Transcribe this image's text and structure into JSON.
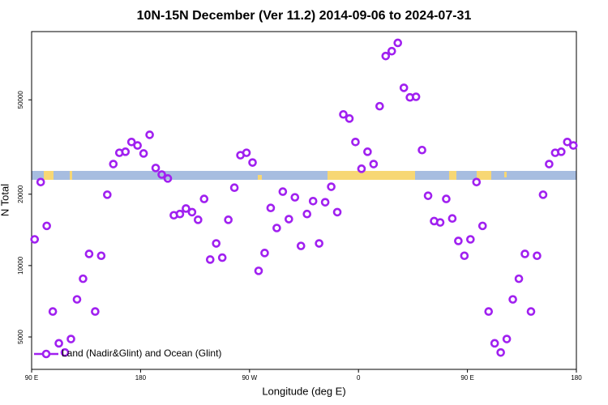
{
  "chart_data": {
    "type": "scatter",
    "title": "10N-15N December (Ver 11.2)   2014-09-06 to 2024-07-31",
    "x_label": "Longitude (deg E)",
    "y_label": "N Total",
    "xlim": [
      90,
      540
    ],
    "xticks": [
      {
        "value": 90,
        "label": "90 E"
      },
      {
        "value": 180,
        "label": "180"
      },
      {
        "value": 270,
        "label": "90 W"
      },
      {
        "value": 360,
        "label": "0"
      },
      {
        "value": 450,
        "label": "90 E"
      },
      {
        "value": 540,
        "label": "180"
      }
    ],
    "ylim": [
      3650,
      97000
    ],
    "yticks": [
      5000,
      10000,
      20000,
      50000
    ],
    "y_log": true,
    "legend_position": "bottom-left",
    "series": [
      {
        "name": "Land (Nadir&Glint) and Ocean (Glint)",
        "color": "#a020f0",
        "x": [
          92.5,
          97.5,
          102.5,
          107.5,
          112.5,
          117.5,
          122.5,
          127.5,
          132.5,
          137.5,
          142.5,
          147.5,
          152.5,
          157.5,
          162.5,
          167.5,
          172.5,
          177.5,
          182.5,
          187.5,
          192.5,
          197.5,
          202.5,
          207.5,
          212.5,
          217.5,
          222.5,
          227.5,
          232.5,
          237.5,
          242.5,
          247.5,
          252.5,
          257.5,
          262.5,
          267.5,
          272.5,
          277.5,
          282.5,
          287.5,
          292.5,
          297.5,
          302.5,
          307.5,
          312.5,
          317.5,
          322.5,
          327.5,
          332.5,
          337.5,
          342.5,
          347.5,
          352.5,
          357.5,
          362.5,
          367.5,
          372.5,
          377.5,
          382.5,
          387.5,
          392.5,
          397.5,
          402.5,
          407.5,
          412.5,
          417.5,
          422.5,
          427.5,
          432.5,
          437.5,
          442.5,
          447.5,
          452.5,
          457.5,
          462.5,
          467.5,
          472.5,
          477.5,
          482.5,
          487.5,
          492.5,
          497.5,
          502.5,
          507.5,
          512.5,
          517.5,
          522.5,
          527.5,
          532.5,
          537.5
        ],
        "values": [
          12900,
          22500,
          14700,
          6400,
          4700,
          4300,
          4900,
          7200,
          8800,
          11200,
          6400,
          11000,
          19900,
          26800,
          29900,
          30200,
          33200,
          32100,
          29700,
          35600,
          25800,
          24200,
          23300,
          16300,
          16500,
          17400,
          16800,
          15600,
          19100,
          10600,
          12400,
          10800,
          15600,
          21300,
          29200,
          29900,
          27200,
          9500,
          11300,
          17500,
          14400,
          20500,
          15700,
          19400,
          12100,
          16500,
          18700,
          12400,
          18500,
          21500,
          16800,
          43400,
          41700,
          33200,
          25600,
          30200,
          26800,
          47000,
          76500,
          80200,
          86900,
          56200,
          51200,
          51500,
          30700,
          19700,
          15400,
          15200,
          19100,
          15800,
          12700,
          11000,
          12900,
          22500,
          14700,
          6400,
          4700,
          4300,
          4900,
          7200,
          8800,
          11200,
          6400,
          11000,
          19900,
          26800,
          29900,
          30200,
          33200,
          32100
        ]
      }
    ]
  }
}
